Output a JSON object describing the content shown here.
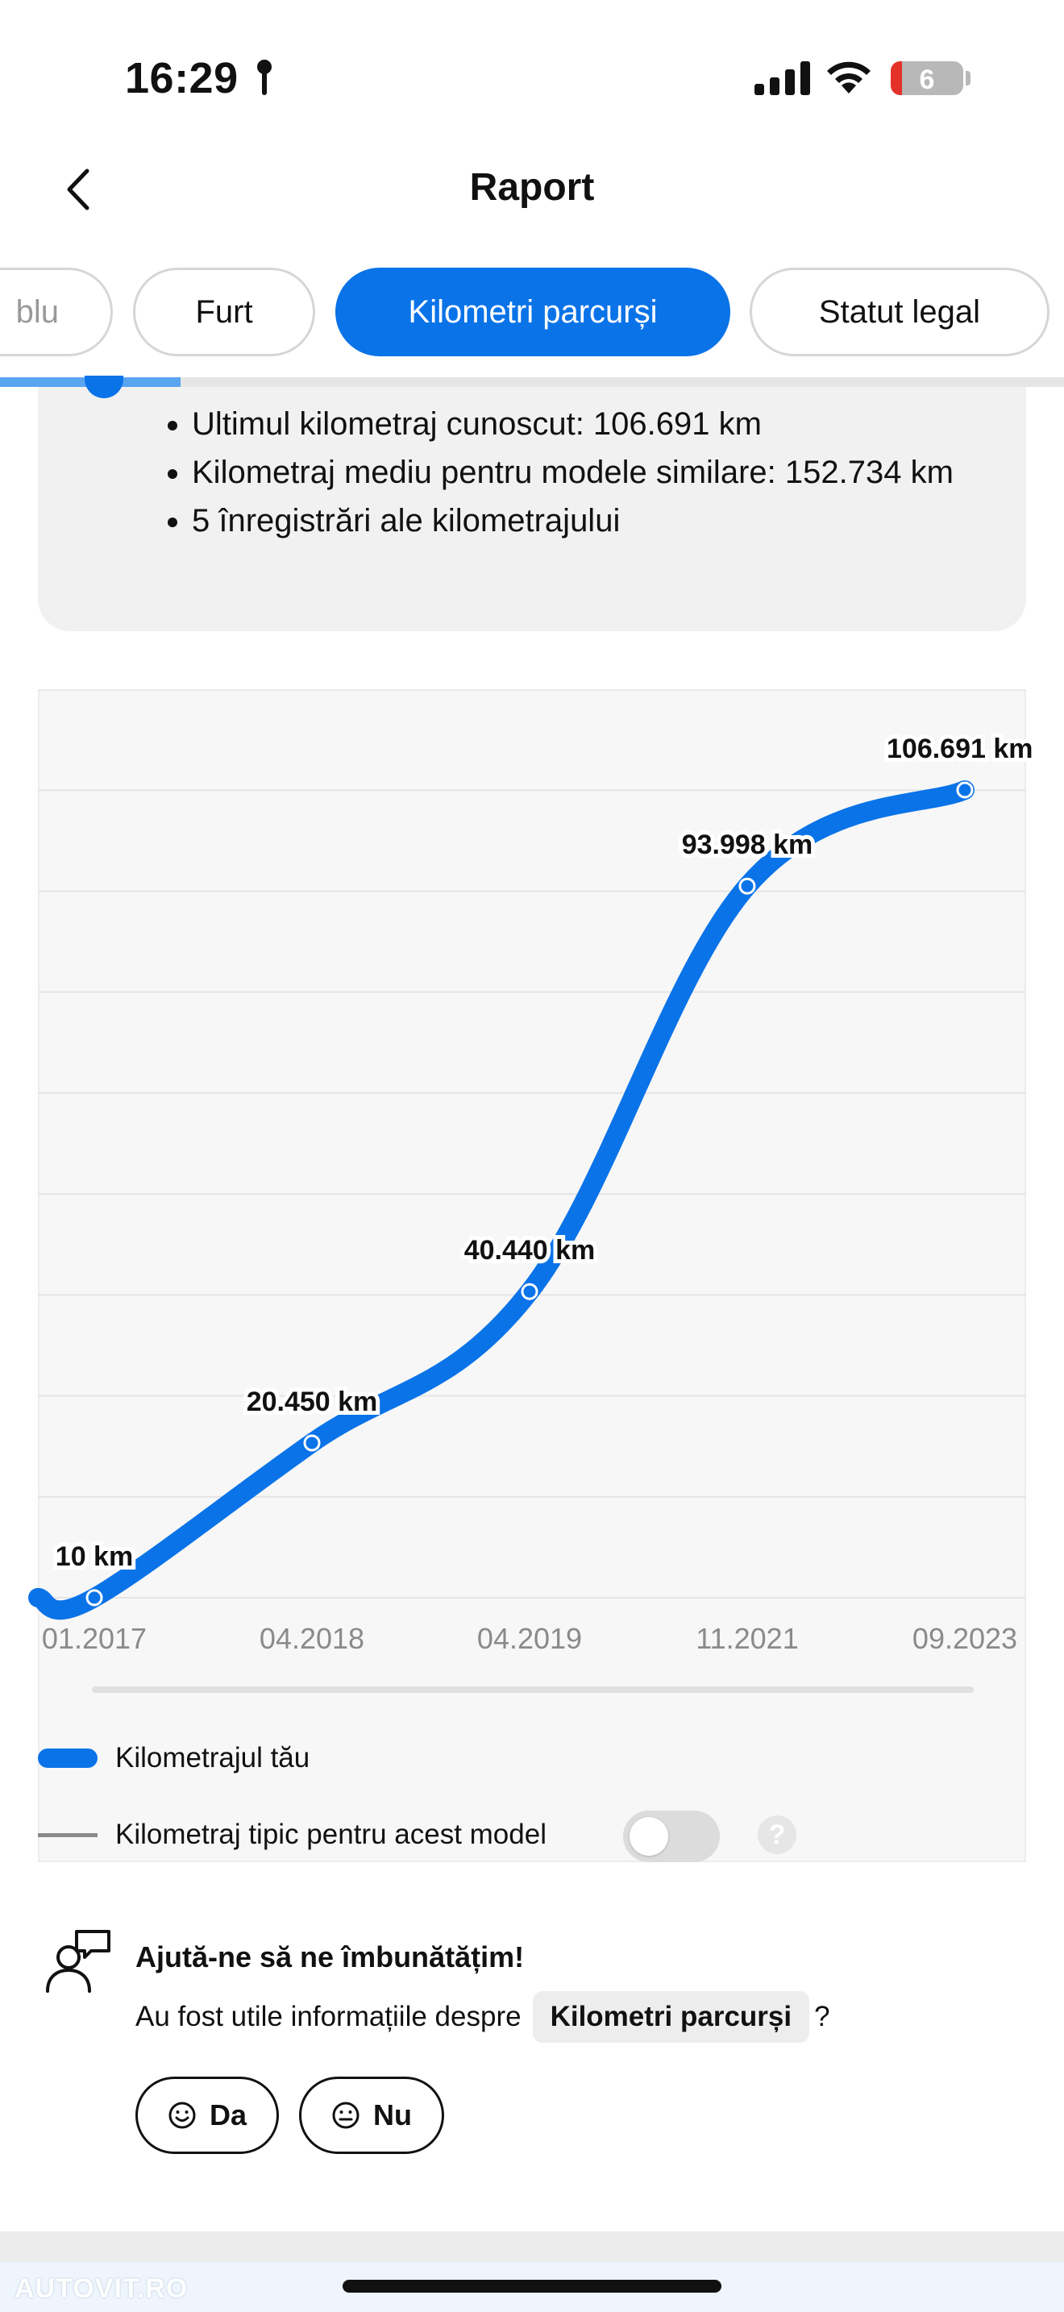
{
  "status_bar": {
    "time": "16:29",
    "battery_level": "6",
    "icons": [
      "location-icon",
      "signal-icon",
      "wifi-icon",
      "battery-icon"
    ]
  },
  "header": {
    "title": "Raport",
    "back_icon": "chevron-left-icon"
  },
  "tabs": [
    {
      "label": "blu",
      "active": false
    },
    {
      "label": "Furt",
      "active": false
    },
    {
      "label": "Kilometri parcurși",
      "active": true
    },
    {
      "label": "Statut legal",
      "active": false
    }
  ],
  "summary": {
    "items": [
      "Ultimul kilometraj cunoscut: 106.691 km",
      "Kilometraj mediu pentru modele similare: 152.734 km",
      "5 înregistrări ale kilometrajului"
    ]
  },
  "chart_data": {
    "type": "line",
    "x": [
      "01.2017",
      "04.2018",
      "04.2019",
      "11.2021",
      "09.2023"
    ],
    "series": [
      {
        "name": "Kilometrajul tău",
        "values": [
          10,
          20450,
          40440,
          93998,
          106691
        ],
        "color": "#0a73e8"
      }
    ],
    "data_labels": [
      "10 km",
      "20.450 km",
      "40.440 km",
      "93.998 km",
      "106.691 km"
    ],
    "ylim": [
      0,
      120000
    ],
    "grid": true
  },
  "legend": {
    "items": [
      {
        "label": "Kilometrajul tău",
        "color": "#0a73e8"
      },
      {
        "label": "Kilometraj tipic pentru acest model",
        "color": "#8a8a8a"
      }
    ],
    "typical_toggle_on": false,
    "help_label": "?"
  },
  "feedback": {
    "title": "Ajută-ne să ne îmbunătățim!",
    "question_prefix": "Au fost utile informațiile despre",
    "topic": "Kilometri parcurși",
    "question_suffix": "?",
    "yes_label": "Da",
    "no_label": "Nu"
  },
  "watermark": "AUTOVIT.RO",
  "colors": {
    "accent": "#0a73e8",
    "card_bg": "#f1f1f1"
  }
}
